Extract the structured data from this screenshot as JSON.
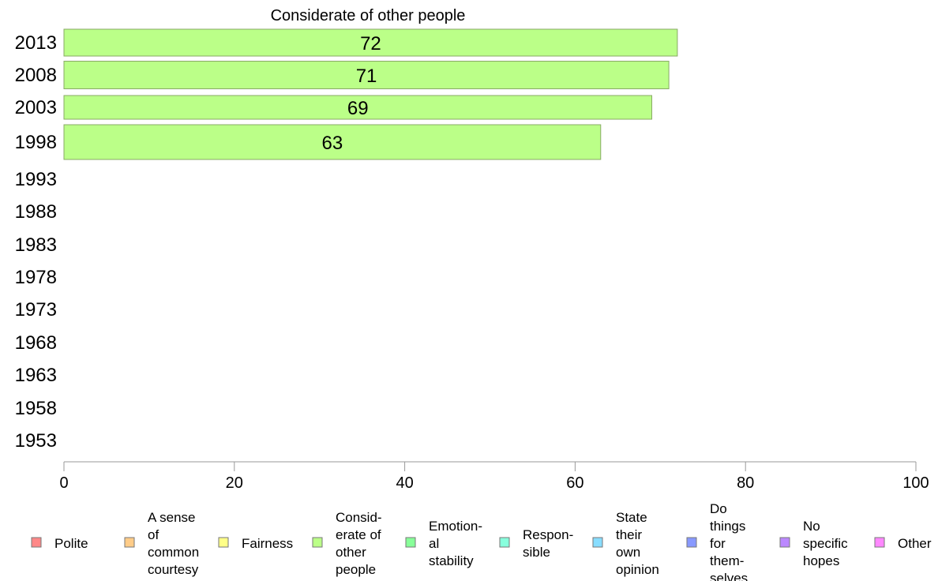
{
  "chart_data": {
    "type": "bar",
    "orientation": "horizontal",
    "title": "Considerate of other people",
    "categories": [
      "2013",
      "2008",
      "2003",
      "1998",
      "1993",
      "1988",
      "1983",
      "1978",
      "1973",
      "1968",
      "1963",
      "1958",
      "1953"
    ],
    "series": [
      {
        "name": "Considerate of other people",
        "values": [
          72,
          71,
          69,
          63,
          null,
          null,
          null,
          null,
          null,
          null,
          null,
          null,
          null
        ]
      }
    ],
    "data_labels": [
      "72",
      "71",
      "69",
      "63"
    ],
    "xlim": [
      0,
      100
    ],
    "xticks": [
      0,
      20,
      40,
      60,
      80,
      100
    ],
    "xlabel": "",
    "ylabel": "",
    "grid": false,
    "bar_color": "#bbff88",
    "bar_edge_color": "#88aa66",
    "legend_position": "bottom",
    "legend": [
      {
        "label": "Polite",
        "color": "#ff8888"
      },
      {
        "label": "A sense of common courtesy",
        "color": "#ffcc88"
      },
      {
        "label": "Fairness",
        "color": "#ffff88"
      },
      {
        "label": "Consid-erate of other people",
        "color": "#bbff88"
      },
      {
        "label": "Emotion-al stability",
        "color": "#88ff99"
      },
      {
        "label": "Respon-sible",
        "color": "#88ffdd"
      },
      {
        "label": "State their own opinion",
        "color": "#88ddff"
      },
      {
        "label": "Do things for them-selves",
        "color": "#8899ff"
      },
      {
        "label": "No specific hopes",
        "color": "#bb88ff"
      },
      {
        "label": "Other",
        "color": "#ff88ff"
      }
    ]
  }
}
